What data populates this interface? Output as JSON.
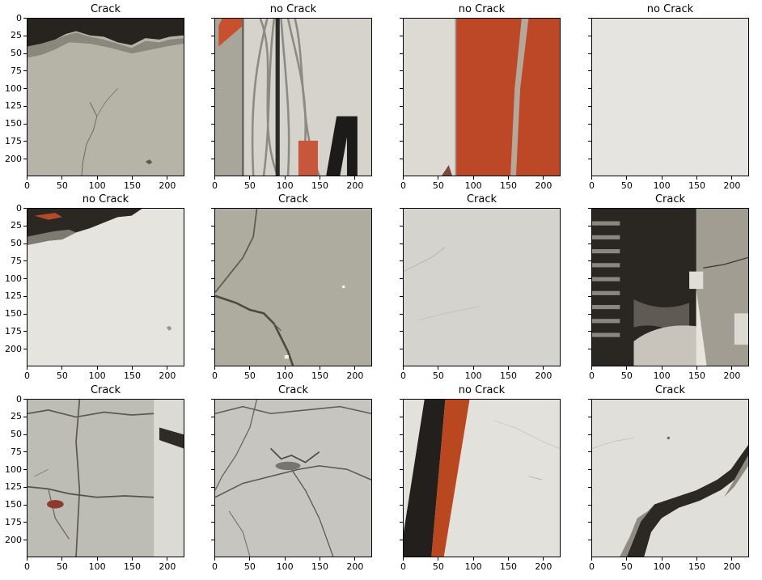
{
  "figure": {
    "x_ticks": [
      "0",
      "50",
      "100",
      "150",
      "200"
    ],
    "y_ticks": [
      "0",
      "25",
      "50",
      "75",
      "100",
      "125",
      "150",
      "175",
      "200"
    ],
    "panels": [
      {
        "title": "Crack",
        "scene": "crack-edge",
        "bg": "#b5b2a6"
      },
      {
        "title": "no Crack",
        "scene": "wires",
        "bg": "#d6d3cc"
      },
      {
        "title": "no Crack",
        "scene": "red-stripe",
        "bg": "#bd4a2a"
      },
      {
        "title": "no Crack",
        "scene": "plain",
        "bg": "#e6e4e0"
      },
      {
        "title": "no Crack",
        "scene": "chip-top",
        "bg": "#e4e2dc"
      },
      {
        "title": "Crack",
        "scene": "crack-y",
        "bg": "#aeaba0"
      },
      {
        "title": "Crack",
        "scene": "speckled",
        "bg": "#d4d3cd"
      },
      {
        "title": "Crack",
        "scene": "dark-coil",
        "bg": "#2a2622"
      },
      {
        "title": "Crack",
        "scene": "crack-grid",
        "bg": "#bdbcb5"
      },
      {
        "title": "Crack",
        "scene": "crack-net",
        "bg": "#c6c5bf"
      },
      {
        "title": "no Crack",
        "scene": "diag-stripe",
        "bg": "#e3e1dc"
      },
      {
        "title": "Crack",
        "scene": "crack-wide",
        "bg": "#e1dfd9"
      }
    ]
  }
}
